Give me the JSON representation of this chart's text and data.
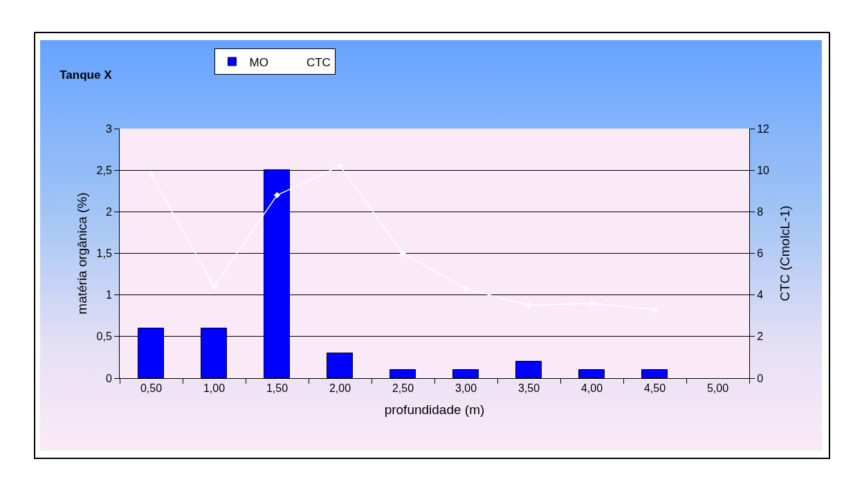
{
  "chart_data": {
    "type": "bar",
    "title": "Tanque X",
    "xlabel": "profundidade (m)",
    "ylabel": "matéria orgânica (%)",
    "y2label": "CTC (CmolcL-1)",
    "categories": [
      "0,50",
      "1,00",
      "1,50",
      "2,00",
      "2,50",
      "3,00",
      "3,50",
      "4,00",
      "4,50",
      "5,00"
    ],
    "series": [
      {
        "name": "MO",
        "color": "#0000ff",
        "values": [
          0.6,
          0.6,
          2.5,
          0.3,
          0.1,
          0.1,
          0.2,
          0.1,
          0.1,
          null
        ]
      },
      {
        "name": "CTC",
        "type": "line",
        "axis": "y2",
        "color": "#ffffff",
        "marker": "diamond",
        "values": [
          9.8,
          4.4,
          8.8,
          10.2,
          6.0,
          4.3,
          3.5,
          3.6,
          3.3,
          null
        ]
      }
    ],
    "ylim": [
      0,
      3
    ],
    "yticks": [
      0,
      {
        "value": 0.5,
        "label": "0,5"
      },
      1,
      {
        "value": 1.5,
        "label": "1,5"
      },
      2,
      {
        "value": 2.5,
        "label": "2,5"
      },
      3
    ],
    "y2lim": [
      0,
      12
    ],
    "y2ticks": [
      0,
      2,
      4,
      6,
      8,
      10,
      12
    ],
    "grid": "y",
    "legend": "top left"
  }
}
